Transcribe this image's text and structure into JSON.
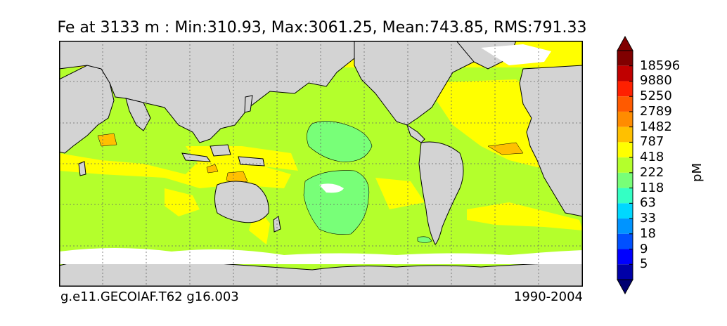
{
  "title": "Fe at 3133 m : Min:310.93, Max:3061.25, Mean:743.85, RMS:791.33",
  "run_id": "g.e11.GECOIAF.T62 g16.003",
  "years": "1990-2004",
  "colorbar": {
    "unit": "pM",
    "ticks": [
      "18596",
      "9880",
      "5250",
      "2789",
      "1482",
      "787",
      "418",
      "222",
      "118",
      "63",
      "33",
      "18",
      "9",
      "5"
    ],
    "colors_top_to_bottom": [
      "#800000",
      "#c00000",
      "#ff2000",
      "#ff5a00",
      "#ff8c00",
      "#ffc000",
      "#ffff00",
      "#b4ff2c",
      "#78ff78",
      "#34ffc4",
      "#00d8ff",
      "#0094ff",
      "#0050ff",
      "#0000ff",
      "#0000a8"
    ],
    "land_color": "#d3d3d3"
  }
}
